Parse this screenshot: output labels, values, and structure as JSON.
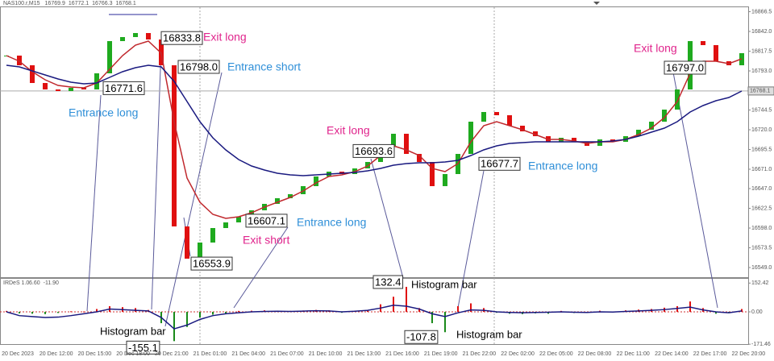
{
  "chart_data": [
    {
      "type": "candlestick",
      "header": {
        "symbol": "NAS100.r,M15",
        "values": [
          16769.9,
          16772.1,
          16766.3,
          16768.1
        ]
      },
      "closes": [
        16812,
        16800,
        16778,
        16770,
        16768,
        16772,
        16770,
        16790,
        16830,
        16835,
        16840,
        16832,
        16800,
        16600,
        16560,
        16580,
        16598,
        16605,
        16612,
        16620,
        16628,
        16635,
        16640,
        16650,
        16662,
        16668,
        16665,
        16672,
        16680,
        16700,
        16715,
        16690,
        16680,
        16650,
        16665,
        16690,
        16730,
        16742,
        16738,
        16725,
        16718,
        16712,
        16705,
        16710,
        16705,
        16700,
        16708,
        16705,
        16712,
        16720,
        16730,
        16745,
        16770,
        16830,
        16825,
        16805,
        16800,
        16815
      ],
      "up_color": "#1faa1f",
      "down_color": "#e01010",
      "series": [
        {
          "color": "#c0282d",
          "values": [
            16812,
            16805,
            16792,
            16782,
            16775,
            16773,
            16772,
            16778,
            16795,
            16812,
            16825,
            16830,
            16815,
            16730,
            16660,
            16630,
            16615,
            16610,
            16612,
            16617,
            16624,
            16630,
            16636,
            16644,
            16654,
            16662,
            16664,
            16668,
            16675,
            16688,
            16700,
            16695,
            16688,
            16672,
            16668,
            16678,
            16705,
            16725,
            16730,
            16725,
            16720,
            16714,
            16708,
            16708,
            16706,
            16703,
            16705,
            16705,
            16708,
            16714,
            16722,
            16735,
            16755,
            16790,
            16805,
            16805,
            16802,
            16808
          ]
        },
        {
          "color": "#1a1a80",
          "values": [
            16800,
            16798,
            16793,
            16788,
            16783,
            16779,
            16777,
            16778,
            16785,
            16792,
            16797,
            16800,
            16798,
            16780,
            16755,
            16730,
            16710,
            16695,
            16683,
            16675,
            16670,
            16666,
            16664,
            16663,
            16664,
            16665,
            16666,
            16667,
            16669,
            16672,
            16676,
            16678,
            16679,
            16679,
            16680,
            16682,
            16688,
            16695,
            16700,
            16703,
            16704,
            16705,
            16705,
            16705,
            16705,
            16705,
            16705,
            16706,
            16708,
            16712,
            16717,
            16722,
            16730,
            16742,
            16750,
            16756,
            16760,
            16768
          ]
        }
      ],
      "ylim": [
        16537,
        16873
      ],
      "yticks": [
        16866.5,
        {
          "value": 16842,
          "label": "16842.0"
        },
        16817.5,
        {
          "value": 16793,
          "label": "16793.0"
        },
        16744.5,
        {
          "value": 16720,
          "label": "16720.0"
        },
        16695.5,
        {
          "value": 16671,
          "label": "16671.0"
        },
        {
          "value": 16647,
          "label": "16647.0"
        },
        16622.5,
        {
          "value": 16598,
          "label": "16598.0"
        },
        16573.5,
        {
          "value": 16549,
          "label": "16549.0"
        }
      ],
      "annotations": {
        "values": [
          16833.8,
          16798,
          16771.6,
          16693.6,
          16677.7,
          16607.1,
          16553.9,
          16797
        ],
        "value_labels": [
          "16833.8",
          "16798.0",
          "16771.6",
          "16693.6",
          "16677.7",
          "16607.1",
          "16553.9",
          "16797.0"
        ],
        "texts": [
          "Exit long",
          "Entrance short",
          "Entrance long",
          "Exit long",
          "Entrance long",
          "Entrance long",
          "Exit short",
          "Exit long"
        ],
        "colors": [
          "#e0248c",
          "#2f8fd8",
          "#2f8fd8",
          "#e0248c",
          "#2f8fd8",
          "#2f8fd8",
          "#e0248c",
          "#e0248c"
        ]
      }
    },
    {
      "type": "histogram-line",
      "header": {
        "name": "IRDeS 1.0",
        "values": [
          6.6,
          -11.9
        ],
        "value_labels": [
          "6.60",
          "-11.90"
        ]
      },
      "values": [
        5,
        -8,
        -10,
        -12,
        -6,
        3,
        2,
        15,
        30,
        25,
        20,
        10,
        -60,
        -155.1,
        -80,
        -30,
        -15,
        -8,
        5,
        6,
        8,
        6,
        5,
        7,
        10,
        8,
        -5,
        6,
        10,
        40,
        80,
        132.4,
        20,
        -60,
        -107.8,
        30,
        45,
        20,
        -5,
        -10,
        -12,
        -8,
        -10,
        5,
        -6,
        -5,
        6,
        -4,
        8,
        12,
        15,
        22,
        30,
        55,
        20,
        -10,
        -5,
        15
      ],
      "up_color": "#e01010",
      "down_color": "#1a8a1a",
      "line": {
        "color": "#1a1a80",
        "values": [
          0,
          -20,
          -25,
          -30,
          -28,
          -20,
          -10,
          0,
          15,
          12,
          8,
          5,
          -30,
          -90,
          -70,
          -40,
          -20,
          -10,
          -5,
          0,
          2,
          3,
          2,
          4,
          6,
          5,
          0,
          3,
          8,
          20,
          35,
          30,
          15,
          -10,
          -25,
          -5,
          10,
          8,
          0,
          -3,
          -5,
          -3,
          -2,
          0,
          -2,
          -3,
          0,
          -1,
          2,
          5,
          8,
          12,
          18,
          25,
          10,
          0,
          -5,
          5
        ]
      },
      "ylim": [
        -175,
        175
      ],
      "yticks": [
        152.42,
        {
          "value": 0,
          "label": "0.00"
        },
        -171.46
      ],
      "annotations": {
        "values": [
          132.4,
          -155.1,
          -107.8
        ],
        "texts": [
          "Histogram bar",
          "Histogram bar",
          "Histogram bar"
        ],
        "colors": [
          "#d01010",
          "#1a7a1a",
          "#1a7a1a"
        ]
      },
      "time_labels": [
        "20 Dec 2023",
        "20 Dec 12:00",
        "20 Dec 15:00",
        "20 Dec 18:00",
        "20 Dec 21:00",
        "21 Dec 01:00",
        "21 Dec 04:00",
        "21 Dec 07:00",
        "21 Dec 10:00",
        "21 Dec 13:00",
        "21 Dec 16:00",
        "21 Dec 19:00",
        "21 Dec 22:00",
        "22 Dec 02:00",
        "22 Dec 05:00",
        "22 Dec 08:00",
        "22 Dec 11:00",
        "22 Dec 14:00",
        "22 Dec 17:00",
        "22 Dec 20:00"
      ]
    }
  ]
}
